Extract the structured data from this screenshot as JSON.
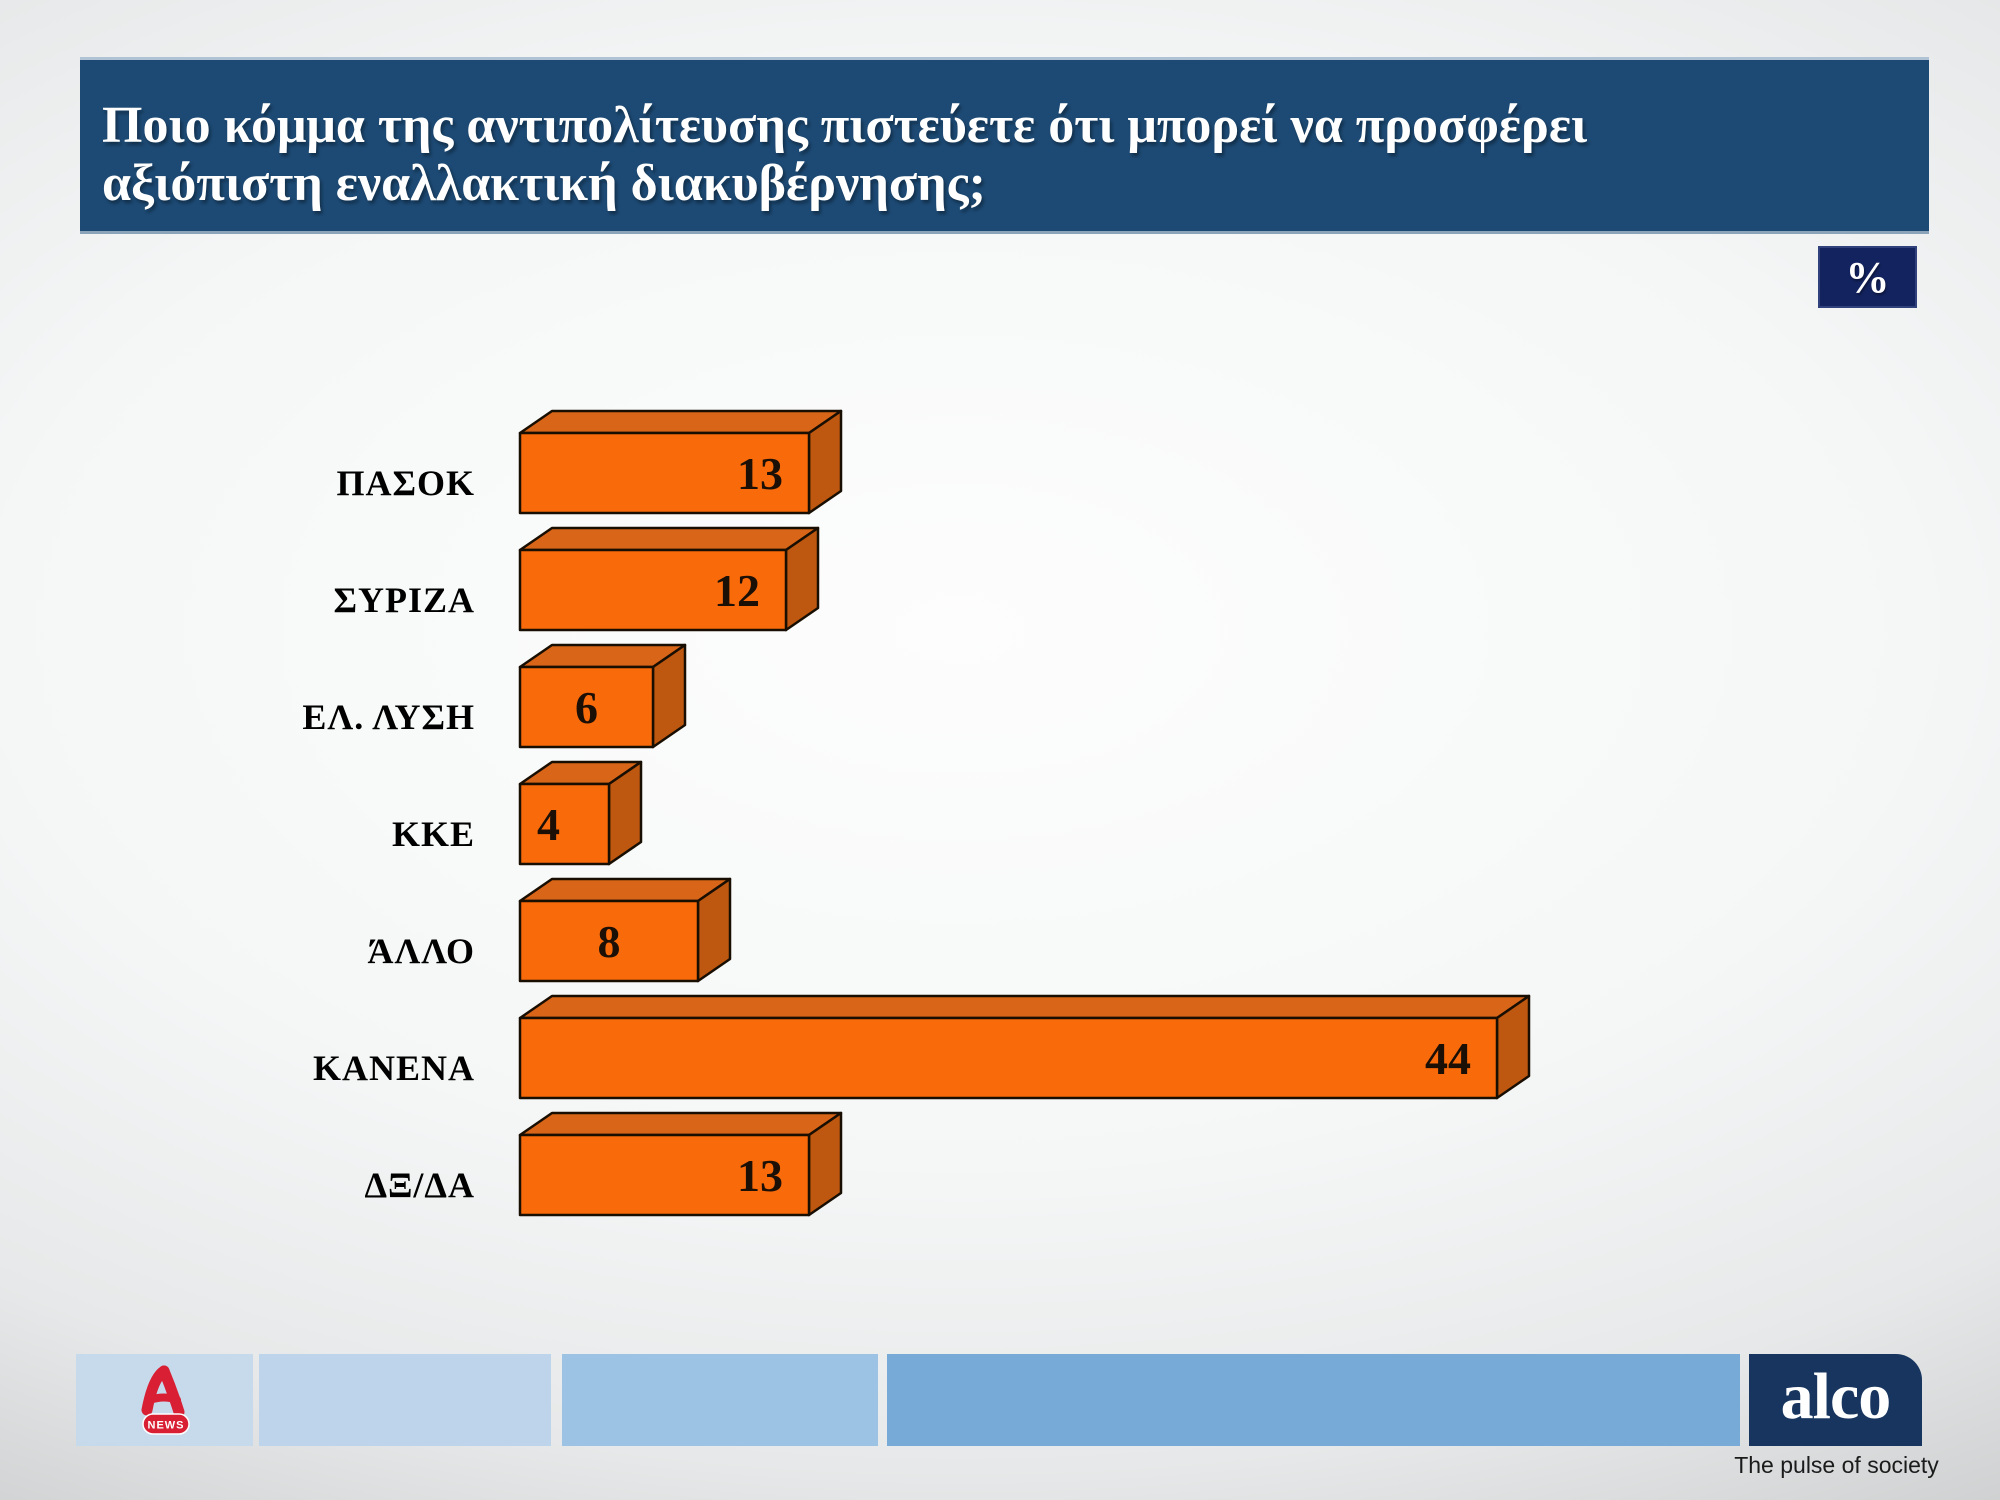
{
  "title": {
    "lines": [
      "Ποιο κόμμα της αντιπολίτευσης πιστεύετε ότι μπορεί να προσφέρει",
      "αξιόπιστη εναλλακτική διακυβέρνησης;"
    ]
  },
  "unit_badge": "%",
  "chart_data": {
    "type": "bar",
    "orientation": "horizontal",
    "style": "3d",
    "title": "Ποιο κόμμα της αντιπολίτευσης πιστεύετε ότι μπορεί να προσφέρει αξιόπιστη εναλλακτική διακυβέρνησης;",
    "unit": "%",
    "categories": [
      "ΠΑΣΟΚ",
      "ΣΥΡΙΖΑ",
      "ΕΛ. ΛΥΣΗ",
      "ΚΚΕ",
      "ΆΛΛΟ",
      "ΚΑΝΕΝΑ",
      "ΔΞ/ΔΑ"
    ],
    "values": [
      13,
      12,
      6,
      4,
      8,
      44,
      13
    ],
    "xlim": [
      0,
      60
    ],
    "grid": false,
    "colors": {
      "front": "#f96a0b",
      "top": "#d96518",
      "side": "#be5810",
      "outline": "#190e02",
      "value_text": "#1c1006",
      "label_text": "#000000"
    }
  },
  "header_colors": {
    "title_bar_bg": "#1d4a74",
    "badge_bg": "#13235f"
  },
  "footer": {
    "alpha_news_badge": "NEWS",
    "alpha_red": "#d81f34",
    "strip_colors": [
      "#c6daec",
      "#bdd4ea",
      "#9cc3e4",
      "#77aad6"
    ],
    "alco": {
      "wordmark": "alco",
      "tagline": "The pulse of society",
      "bg": "#17355e"
    }
  }
}
